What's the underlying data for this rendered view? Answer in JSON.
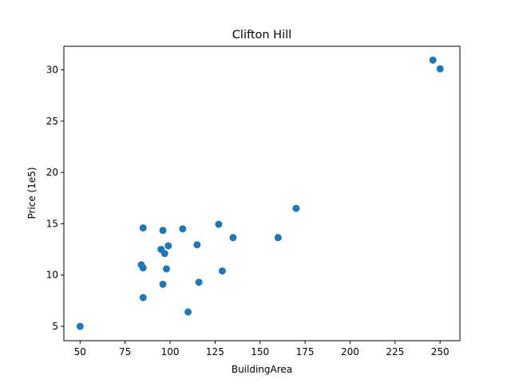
{
  "chart_data": {
    "type": "scatter",
    "title": "Clifton Hill",
    "xlabel": "BuildingArea",
    "ylabel": "Price (1e5)",
    "xlim": [
      41,
      261
    ],
    "ylim": [
      3.6,
      32.3
    ],
    "xticks": [
      50,
      75,
      100,
      125,
      150,
      175,
      200,
      225,
      250
    ],
    "yticks": [
      5,
      10,
      15,
      20,
      25,
      30
    ],
    "grid": false,
    "point_color": "#1f77b4",
    "points": [
      {
        "x": 50,
        "y": 5.0
      },
      {
        "x": 84,
        "y": 11.0
      },
      {
        "x": 85,
        "y": 10.7
      },
      {
        "x": 85,
        "y": 14.6
      },
      {
        "x": 85,
        "y": 7.8
      },
      {
        "x": 95,
        "y": 12.5
      },
      {
        "x": 96,
        "y": 14.35
      },
      {
        "x": 96,
        "y": 9.1
      },
      {
        "x": 97,
        "y": 12.1
      },
      {
        "x": 98,
        "y": 10.6
      },
      {
        "x": 99,
        "y": 12.85
      },
      {
        "x": 107,
        "y": 14.5
      },
      {
        "x": 110,
        "y": 6.4
      },
      {
        "x": 115,
        "y": 12.95
      },
      {
        "x": 116,
        "y": 9.3
      },
      {
        "x": 127,
        "y": 14.95
      },
      {
        "x": 129,
        "y": 10.4
      },
      {
        "x": 135,
        "y": 13.65
      },
      {
        "x": 160,
        "y": 13.65
      },
      {
        "x": 170,
        "y": 16.5
      },
      {
        "x": 246,
        "y": 30.95
      },
      {
        "x": 250,
        "y": 30.1
      }
    ]
  }
}
